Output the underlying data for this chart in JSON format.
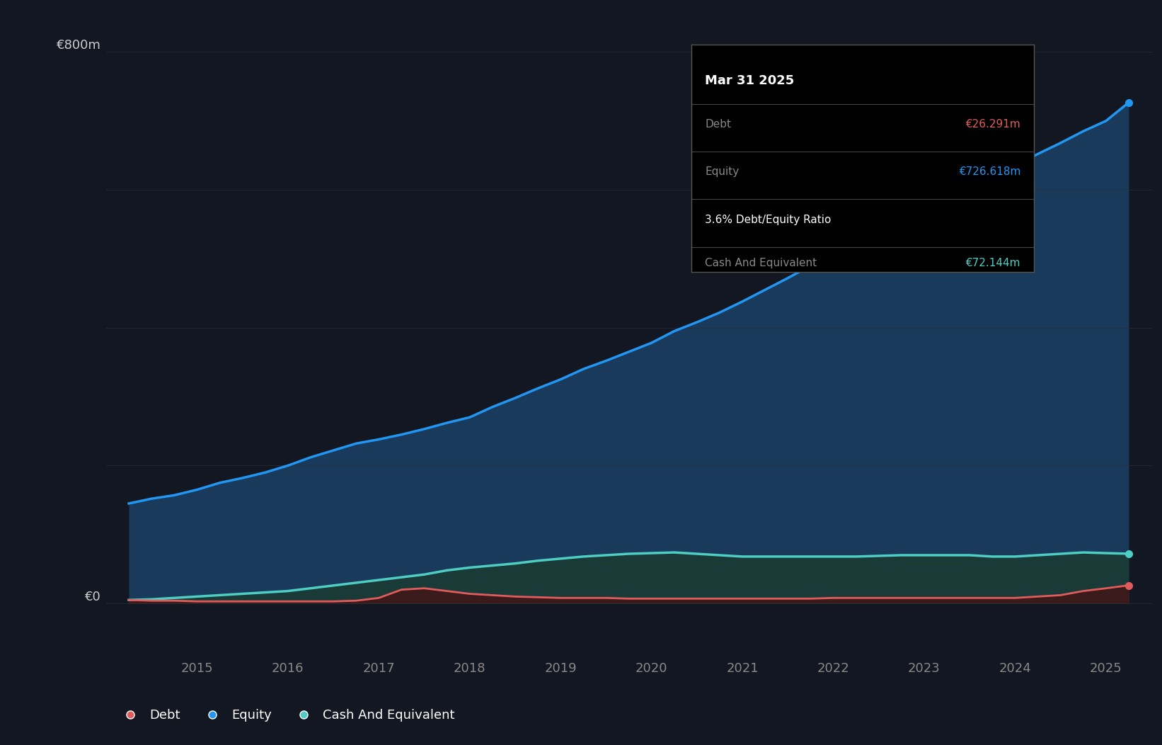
{
  "background_color": "#131722",
  "plot_bg_color": "#131722",
  "grid_color": "#2a2e39",
  "title_box_bg": "#000000",
  "title_date": "Mar 31 2025",
  "tooltip_debt_label": "Debt",
  "tooltip_debt_value": "€26.291m",
  "tooltip_equity_label": "Equity",
  "tooltip_equity_value": "€726.618m",
  "tooltip_ratio": "3.6% Debt/Equity Ratio",
  "tooltip_cash_label": "Cash And Equivalent",
  "tooltip_cash_value": "€72.144m",
  "debt_color": "#e05c5c",
  "equity_color": "#2196f3",
  "cash_color": "#4ecdc4",
  "equity_fill_color": "#1a3a5c",
  "debt_fill_color": "#3a1a1a",
  "cash_fill_color": "#1a3a38",
  "ylabel": "€800m",
  "zero_label": "€0",
  "legend_debt": "Debt",
  "legend_equity": "Equity",
  "legend_cash": "Cash And Equivalent",
  "years": [
    2014.25,
    2014.5,
    2014.75,
    2015.0,
    2015.25,
    2015.5,
    2015.75,
    2016.0,
    2016.25,
    2016.5,
    2016.75,
    2017.0,
    2017.25,
    2017.5,
    2017.75,
    2018.0,
    2018.25,
    2018.5,
    2018.75,
    2019.0,
    2019.25,
    2019.5,
    2019.75,
    2020.0,
    2020.25,
    2020.5,
    2020.75,
    2021.0,
    2021.25,
    2021.5,
    2021.75,
    2022.0,
    2022.25,
    2022.5,
    2022.75,
    2023.0,
    2023.25,
    2023.5,
    2023.75,
    2024.0,
    2024.25,
    2024.5,
    2024.75,
    2025.0,
    2025.25
  ],
  "equity": [
    145,
    152,
    157,
    165,
    175,
    182,
    190,
    200,
    212,
    222,
    232,
    238,
    245,
    253,
    262,
    270,
    285,
    298,
    312,
    325,
    340,
    352,
    365,
    378,
    395,
    408,
    422,
    438,
    455,
    472,
    490,
    508,
    525,
    542,
    558,
    575,
    592,
    608,
    620,
    635,
    652,
    668,
    685,
    700,
    726.618
  ],
  "debt": [
    5,
    4,
    4,
    3,
    3,
    3,
    3,
    3,
    3,
    3,
    4,
    8,
    20,
    22,
    18,
    14,
    12,
    10,
    9,
    8,
    8,
    8,
    7,
    7,
    7,
    7,
    7,
    7,
    7,
    7,
    7,
    8,
    8,
    8,
    8,
    8,
    8,
    8,
    8,
    8,
    10,
    12,
    18,
    22,
    26.291
  ],
  "cash": [
    5,
    6,
    8,
    10,
    12,
    14,
    16,
    18,
    22,
    26,
    30,
    34,
    38,
    42,
    48,
    52,
    55,
    58,
    62,
    65,
    68,
    70,
    72,
    73,
    74,
    72,
    70,
    68,
    68,
    68,
    68,
    68,
    68,
    69,
    70,
    70,
    70,
    70,
    68,
    68,
    70,
    72,
    74,
    73,
    72.144
  ],
  "xlim": [
    2014.0,
    2025.5
  ],
  "ylim": [
    -80,
    860
  ],
  "xticks": [
    2015,
    2016,
    2017,
    2018,
    2019,
    2020,
    2021,
    2022,
    2023,
    2024,
    2025
  ],
  "ytick_800": 800,
  "ytick_0": 0
}
